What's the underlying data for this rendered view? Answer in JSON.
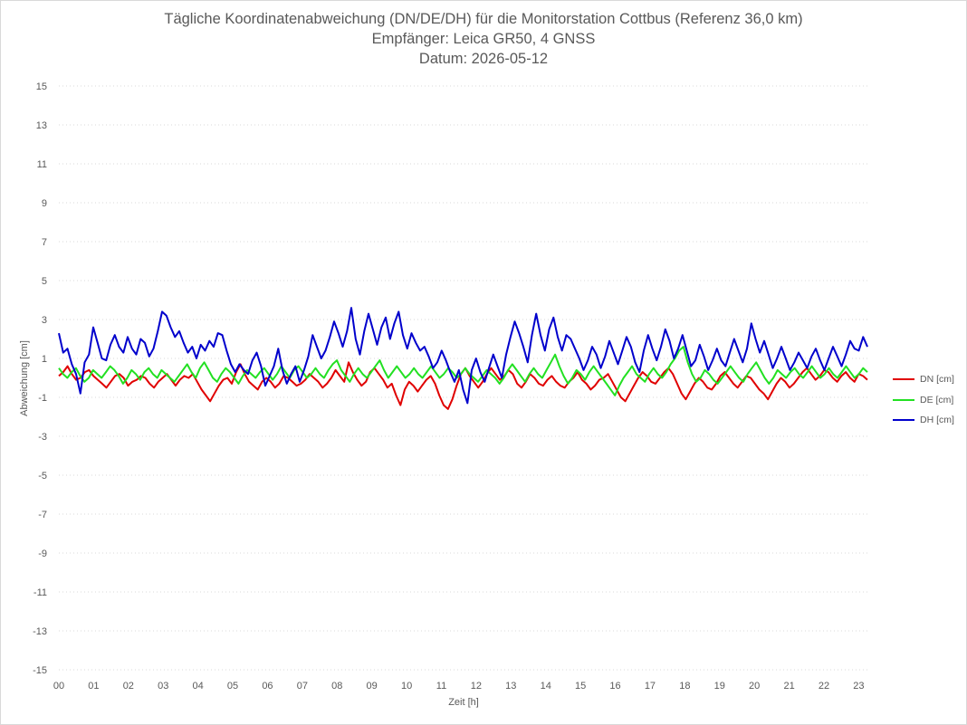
{
  "chart_data": {
    "type": "line",
    "title": "Tägliche Koordinatenabweichung (DN/DE/DH) für die Monitorstation Cottbus (Referenz 36,0 km)",
    "subtitle": "Empfänger: Leica GR50, 4 GNSS",
    "date_line": "Datum: 2026-05-12",
    "xlabel": "Zeit [h]",
    "ylabel": "Abweichung [cm]",
    "xlim": [
      0,
      23.25
    ],
    "ylim": [
      -15,
      15
    ],
    "x_ticks": [
      "00",
      "01",
      "02",
      "03",
      "04",
      "05",
      "06",
      "07",
      "08",
      "09",
      "10",
      "11",
      "12",
      "13",
      "14",
      "15",
      "16",
      "17",
      "18",
      "19",
      "20",
      "21",
      "22",
      "23"
    ],
    "y_ticks": [
      "15",
      "13",
      "11",
      "9",
      "7",
      "5",
      "3",
      "1",
      "-1",
      "-3",
      "-5",
      "-7",
      "-9",
      "-11",
      "-13",
      "-15"
    ],
    "grid": "horizontal dotted",
    "legend_position": "right",
    "series": [
      {
        "name": "DN [cm]",
        "color": "#e00000",
        "x_start": 0,
        "x_end": 23.25,
        "values": [
          0.1,
          0.3,
          0.6,
          0.2,
          -0.1,
          0.0,
          0.3,
          0.4,
          0.1,
          -0.1,
          -0.3,
          -0.5,
          -0.2,
          0.1,
          0.2,
          0.0,
          -0.4,
          -0.2,
          -0.1,
          0.1,
          0.0,
          -0.3,
          -0.5,
          -0.2,
          0.0,
          0.2,
          -0.1,
          -0.4,
          -0.1,
          0.1,
          0.0,
          0.2,
          -0.2,
          -0.6,
          -0.9,
          -1.2,
          -0.8,
          -0.4,
          -0.1,
          0.0,
          -0.3,
          0.3,
          0.7,
          0.2,
          -0.2,
          -0.4,
          -0.6,
          -0.2,
          0.0,
          -0.2,
          -0.5,
          -0.3,
          0.1,
          0.0,
          -0.2,
          -0.4,
          -0.3,
          -0.1,
          0.2,
          0.0,
          -0.2,
          -0.5,
          -0.3,
          0.0,
          0.4,
          0.1,
          -0.2,
          0.8,
          0.3,
          -0.1,
          -0.4,
          -0.2,
          0.3,
          0.5,
          0.2,
          -0.1,
          -0.5,
          -0.3,
          -0.9,
          -1.4,
          -0.6,
          -0.2,
          -0.4,
          -0.7,
          -0.4,
          -0.1,
          0.1,
          -0.3,
          -0.9,
          -1.4,
          -1.6,
          -1.1,
          -0.4,
          0.2,
          0.5,
          0.1,
          -0.2,
          -0.5,
          -0.2,
          0.2,
          0.5,
          0.2,
          -0.1,
          0.1,
          0.4,
          0.2,
          -0.3,
          -0.5,
          -0.2,
          0.2,
          0.0,
          -0.3,
          -0.4,
          -0.1,
          0.1,
          -0.2,
          -0.4,
          -0.5,
          -0.2,
          0.0,
          0.3,
          -0.1,
          -0.3,
          -0.6,
          -0.4,
          -0.1,
          0.0,
          0.2,
          -0.2,
          -0.6,
          -1.0,
          -1.2,
          -0.8,
          -0.4,
          0.0,
          0.3,
          0.1,
          -0.2,
          -0.3,
          0.0,
          0.3,
          0.5,
          0.2,
          -0.3,
          -0.8,
          -1.1,
          -0.7,
          -0.3,
          0.0,
          -0.2,
          -0.5,
          -0.6,
          -0.3,
          0.1,
          0.3,
          0.0,
          -0.3,
          -0.5,
          -0.2,
          0.1,
          0.0,
          -0.3,
          -0.6,
          -0.8,
          -1.1,
          -0.7,
          -0.3,
          0.0,
          -0.2,
          -0.5,
          -0.3,
          0.0,
          0.3,
          0.5,
          0.2,
          -0.1,
          0.1,
          0.4,
          0.3,
          0.0,
          -0.2,
          0.1,
          0.3,
          0.0,
          -0.2,
          0.2,
          0.1,
          -0.1
        ]
      },
      {
        "name": "DE [cm]",
        "color": "#22e022",
        "x_start": 0,
        "x_end": 23.25,
        "values": [
          0.5,
          0.2,
          0.0,
          0.3,
          0.5,
          0.1,
          -0.2,
          0.0,
          0.4,
          0.2,
          0.0,
          0.3,
          0.6,
          0.4,
          0.1,
          -0.3,
          0.0,
          0.4,
          0.2,
          -0.1,
          0.3,
          0.5,
          0.2,
          0.0,
          0.4,
          0.2,
          0.0,
          -0.2,
          0.1,
          0.4,
          0.7,
          0.3,
          0.0,
          0.5,
          0.8,
          0.4,
          0.0,
          -0.2,
          0.2,
          0.5,
          0.3,
          0.0,
          -0.3,
          0.1,
          0.4,
          0.2,
          0.0,
          0.3,
          0.5,
          0.2,
          -0.1,
          0.2,
          0.6,
          0.3,
          0.0,
          0.4,
          0.6,
          0.3,
          0.0,
          0.2,
          0.5,
          0.2,
          0.0,
          0.4,
          0.7,
          0.9,
          0.4,
          0.1,
          -0.2,
          0.2,
          0.5,
          0.2,
          0.0,
          0.3,
          0.6,
          0.9,
          0.4,
          0.0,
          0.3,
          0.6,
          0.3,
          0.0,
          0.2,
          0.5,
          0.2,
          0.0,
          0.3,
          0.6,
          0.3,
          0.0,
          0.2,
          0.5,
          0.3,
          0.0,
          0.2,
          0.5,
          0.2,
          0.0,
          -0.2,
          0.1,
          0.4,
          0.2,
          0.0,
          -0.3,
          0.0,
          0.4,
          0.7,
          0.4,
          0.1,
          -0.2,
          0.2,
          0.5,
          0.2,
          0.0,
          0.4,
          0.8,
          1.2,
          0.6,
          0.1,
          -0.3,
          0.0,
          0.4,
          0.2,
          -0.1,
          0.3,
          0.6,
          0.3,
          0.0,
          -0.3,
          -0.6,
          -0.9,
          -0.4,
          0.0,
          0.3,
          0.6,
          0.2,
          0.0,
          -0.2,
          0.2,
          0.5,
          0.2,
          0.0,
          0.3,
          0.7,
          1.0,
          1.4,
          1.6,
          0.8,
          0.2,
          -0.2,
          0.0,
          0.4,
          0.2,
          -0.1,
          -0.3,
          0.0,
          0.3,
          0.6,
          0.3,
          0.0,
          -0.2,
          0.2,
          0.5,
          0.8,
          0.4,
          0.0,
          -0.3,
          0.0,
          0.4,
          0.2,
          0.0,
          0.3,
          0.5,
          0.2,
          0.0,
          0.3,
          0.6,
          0.3,
          0.0,
          0.2,
          0.5,
          0.2,
          0.0,
          0.3,
          0.6,
          0.3,
          0.0,
          0.2,
          0.5,
          0.3
        ]
      },
      {
        "name": "DH [cm]",
        "color": "#0000cc",
        "x_start": 0,
        "x_end": 23.25,
        "values": [
          2.3,
          1.3,
          1.5,
          0.7,
          0.2,
          -0.8,
          0.8,
          1.2,
          2.6,
          1.8,
          1.0,
          0.9,
          1.7,
          2.2,
          1.6,
          1.3,
          2.1,
          1.5,
          1.2,
          2.0,
          1.8,
          1.1,
          1.5,
          2.4,
          3.4,
          3.2,
          2.6,
          2.1,
          2.4,
          1.8,
          1.3,
          1.6,
          1.0,
          1.7,
          1.4,
          1.9,
          1.6,
          2.3,
          2.2,
          1.4,
          0.7,
          0.3,
          0.7,
          0.4,
          0.2,
          0.9,
          1.3,
          0.6,
          -0.4,
          0.1,
          0.6,
          1.5,
          0.4,
          -0.3,
          0.2,
          0.6,
          -0.2,
          0.4,
          1.1,
          2.2,
          1.6,
          1.0,
          1.4,
          2.1,
          2.9,
          2.3,
          1.6,
          2.4,
          3.6,
          2.0,
          1.2,
          2.4,
          3.3,
          2.5,
          1.7,
          2.6,
          3.1,
          2.0,
          2.8,
          3.4,
          2.2,
          1.5,
          2.3,
          1.8,
          1.4,
          1.6,
          1.1,
          0.5,
          0.8,
          1.4,
          0.9,
          0.3,
          -0.2,
          0.4,
          -0.6,
          -1.3,
          0.4,
          1.0,
          0.3,
          -0.2,
          0.5,
          1.2,
          0.6,
          0.0,
          1.2,
          2.1,
          2.9,
          2.3,
          1.6,
          0.8,
          2.2,
          3.3,
          2.2,
          1.4,
          2.5,
          3.1,
          2.1,
          1.4,
          2.2,
          2.0,
          1.5,
          1.0,
          0.4,
          0.9,
          1.6,
          1.2,
          0.5,
          1.1,
          1.9,
          1.3,
          0.7,
          1.4,
          2.1,
          1.6,
          0.8,
          0.3,
          1.4,
          2.2,
          1.5,
          0.9,
          1.6,
          2.5,
          1.9,
          1.0,
          1.5,
          2.2,
          1.4,
          0.6,
          0.9,
          1.7,
          1.1,
          0.4,
          0.9,
          1.5,
          0.9,
          0.6,
          1.3,
          2.0,
          1.4,
          0.8,
          1.5,
          2.8,
          2.0,
          1.3,
          1.9,
          1.2,
          0.5,
          1.0,
          1.6,
          1.0,
          0.4,
          0.8,
          1.3,
          0.9,
          0.5,
          1.1,
          1.5,
          0.9,
          0.4,
          1.0,
          1.6,
          1.1,
          0.6,
          1.2,
          1.9,
          1.5,
          1.4,
          2.1,
          1.6
        ]
      }
    ]
  }
}
